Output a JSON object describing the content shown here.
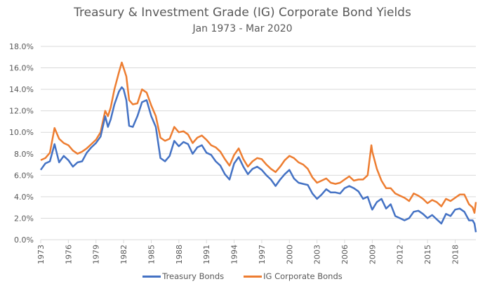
{
  "chart_data": {
    "type": "line",
    "title": "Treasury & Investment Grade (IG) Corporate Bond Yields",
    "subtitle": "Jan 1973 - Mar 2020",
    "xlabel": "",
    "ylabel": "",
    "ylim": [
      0,
      18
    ],
    "xlim": [
      1973,
      2020.25
    ],
    "grid": true,
    "legend_position": "bottom",
    "y_ticks": [
      0,
      2,
      4,
      6,
      8,
      10,
      12,
      14,
      16,
      18
    ],
    "y_tick_labels": [
      "0.0%",
      "2.0%",
      "4.0%",
      "6.0%",
      "8.0%",
      "10.0%",
      "12.0%",
      "14.0%",
      "16.0%",
      "18.0%"
    ],
    "x_ticks": [
      1973,
      1976,
      1979,
      1982,
      1985,
      1988,
      1991,
      1994,
      1997,
      2000,
      2003,
      2006,
      2009,
      2012,
      2015,
      2018
    ],
    "x_tick_labels": [
      "1973",
      "1976",
      "1979",
      "1982",
      "1985",
      "1988",
      "1991",
      "1994",
      "1997",
      "2000",
      "2003",
      "2006",
      "2009",
      "2012",
      "2015",
      "2018"
    ],
    "x": [
      1973.0,
      1973.5,
      1974.0,
      1974.5,
      1975.0,
      1975.5,
      1976.0,
      1976.5,
      1977.0,
      1977.5,
      1978.0,
      1978.5,
      1979.0,
      1979.5,
      1980.0,
      1980.3,
      1980.6,
      1981.0,
      1981.5,
      1981.8,
      1982.0,
      1982.3,
      1982.6,
      1983.0,
      1983.5,
      1984.0,
      1984.5,
      1985.0,
      1985.5,
      1986.0,
      1986.5,
      1987.0,
      1987.5,
      1988.0,
      1988.5,
      1989.0,
      1989.5,
      1990.0,
      1990.5,
      1991.0,
      1991.5,
      1992.0,
      1992.5,
      1993.0,
      1993.5,
      1994.0,
      1994.5,
      1995.0,
      1995.5,
      1996.0,
      1996.5,
      1997.0,
      1997.5,
      1998.0,
      1998.5,
      1999.0,
      1999.5,
      2000.0,
      2000.5,
      2001.0,
      2001.5,
      2002.0,
      2002.5,
      2003.0,
      2003.5,
      2004.0,
      2004.5,
      2005.0,
      2005.5,
      2006.0,
      2006.5,
      2007.0,
      2007.5,
      2008.0,
      2008.5,
      2008.9,
      2009.0,
      2009.5,
      2010.0,
      2010.5,
      2011.0,
      2011.5,
      2012.0,
      2012.5,
      2013.0,
      2013.5,
      2014.0,
      2014.5,
      2015.0,
      2015.5,
      2016.0,
      2016.5,
      2017.0,
      2017.5,
      2018.0,
      2018.5,
      2019.0,
      2019.5,
      2019.9,
      2020.1,
      2020.25
    ],
    "series": [
      {
        "name": "Treasury Bonds",
        "color": "#4472C4",
        "values": [
          6.5,
          7.1,
          7.3,
          8.9,
          7.2,
          7.8,
          7.4,
          6.8,
          7.2,
          7.3,
          8.1,
          8.6,
          9.0,
          9.6,
          11.5,
          10.5,
          11.2,
          12.6,
          13.8,
          14.2,
          14.0,
          13.0,
          10.6,
          10.5,
          11.5,
          12.8,
          13.0,
          11.5,
          10.5,
          7.6,
          7.3,
          7.8,
          9.2,
          8.7,
          9.1,
          8.9,
          8.0,
          8.6,
          8.8,
          8.1,
          7.9,
          7.3,
          6.9,
          6.1,
          5.6,
          7.1,
          7.7,
          6.8,
          6.1,
          6.6,
          6.8,
          6.5,
          6.0,
          5.6,
          5.0,
          5.6,
          6.1,
          6.5,
          5.7,
          5.3,
          5.2,
          5.1,
          4.3,
          3.8,
          4.2,
          4.7,
          4.4,
          4.4,
          4.3,
          4.8,
          5.0,
          4.8,
          4.5,
          3.8,
          4.0,
          3.0,
          2.8,
          3.5,
          3.8,
          2.9,
          3.3,
          2.2,
          2.0,
          1.8,
          2.0,
          2.6,
          2.7,
          2.4,
          2.0,
          2.3,
          1.9,
          1.5,
          2.4,
          2.2,
          2.8,
          2.9,
          2.6,
          1.8,
          1.8,
          1.5,
          0.7
        ]
      },
      {
        "name": "IG Corporate Bonds",
        "color": "#ED7D31",
        "values": [
          7.4,
          7.6,
          8.1,
          10.4,
          9.4,
          9.0,
          8.8,
          8.3,
          8.0,
          8.2,
          8.5,
          8.9,
          9.3,
          10.0,
          12.0,
          11.5,
          12.3,
          14.0,
          15.6,
          16.5,
          16.0,
          15.2,
          13.0,
          12.6,
          12.7,
          14.0,
          13.7,
          12.5,
          11.5,
          9.5,
          9.2,
          9.4,
          10.5,
          10.0,
          10.1,
          9.8,
          9.0,
          9.5,
          9.7,
          9.3,
          8.8,
          8.6,
          8.2,
          7.5,
          6.9,
          7.9,
          8.5,
          7.5,
          6.8,
          7.3,
          7.6,
          7.5,
          7.0,
          6.6,
          6.3,
          6.8,
          7.4,
          7.8,
          7.6,
          7.2,
          7.0,
          6.6,
          5.8,
          5.3,
          5.5,
          5.7,
          5.3,
          5.2,
          5.3,
          5.6,
          5.9,
          5.5,
          5.6,
          5.6,
          6.0,
          8.8,
          8.2,
          6.6,
          5.5,
          4.8,
          4.8,
          4.3,
          4.1,
          3.9,
          3.6,
          4.3,
          4.1,
          3.8,
          3.4,
          3.7,
          3.5,
          3.1,
          3.8,
          3.6,
          3.9,
          4.2,
          4.2,
          3.3,
          3.0,
          2.5,
          3.5
        ]
      }
    ]
  }
}
